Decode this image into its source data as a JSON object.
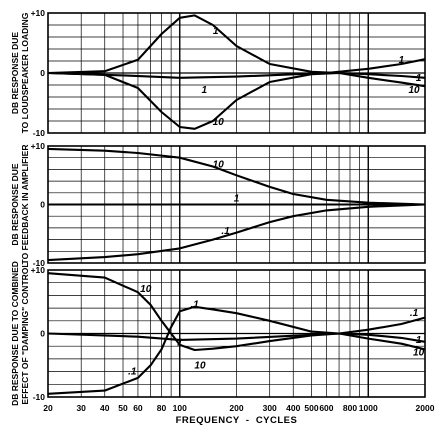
{
  "chart_data": [
    {
      "type": "line",
      "ylabel": [
        "DB RESPONSE DUE",
        "TO LOUDSPEAKER LOADING"
      ],
      "x_scale": "log",
      "xlim": [
        20,
        2000
      ],
      "ylim": [
        -10,
        10
      ],
      "y_ticks": [
        {
          "value": 10,
          "label": "+10"
        },
        {
          "value": 0,
          "label": "0"
        },
        {
          "value": -10,
          "label": "-10"
        }
      ],
      "series": [
        {
          "name": "1",
          "x": [
            20,
            40,
            60,
            80,
            100,
            120,
            150,
            200,
            300,
            500,
            700,
            1000,
            1500,
            2000
          ],
          "y": [
            0,
            0.3,
            2.2,
            6.5,
            9.2,
            9.6,
            8,
            4.5,
            1.5,
            0.2,
            0,
            -0.2,
            -0.5,
            -0.8
          ]
        },
        {
          "name": ".1",
          "x": [
            20,
            50,
            100,
            200,
            500,
            600,
            1000,
            1500,
            2000
          ],
          "y": [
            0,
            -0.4,
            -0.8,
            -0.6,
            -0.1,
            0,
            0.7,
            1.5,
            2.3
          ]
        },
        {
          "name": "10",
          "x": [
            20,
            40,
            60,
            80,
            100,
            120,
            150,
            200,
            300,
            500,
            700,
            1000,
            1500,
            2000
          ],
          "y": [
            0,
            -0.3,
            -2.5,
            -6.5,
            -9,
            -9.3,
            -8,
            -4.5,
            -1.5,
            -0.2,
            0,
            -0.8,
            -1.6,
            -2.2
          ]
        }
      ],
      "curve_labels": [
        {
          "text": "1",
          "x": 155,
          "y": 7
        },
        {
          "text": "1",
          "x": 1500,
          "y": 2.2
        },
        {
          "text": "1",
          "x": 135,
          "y": -2.8
        },
        {
          "text": "1",
          "x": 1850,
          "y": -0.8
        },
        {
          "text": "10",
          "x": 160,
          "y": -8.2
        },
        {
          "text": "10",
          "x": 1750,
          "y": -2.8
        }
      ]
    },
    {
      "type": "line",
      "ylabel": [
        "DB RESPONSE DUE",
        "TO FEEDBACK IN AMPLIFIER"
      ],
      "x_scale": "log",
      "xlim": [
        20,
        2000
      ],
      "ylim": [
        -10,
        10
      ],
      "y_ticks": [
        {
          "value": 10,
          "label": "+10"
        },
        {
          "value": 0,
          "label": "0"
        },
        {
          "value": -10,
          "label": "-10"
        }
      ],
      "series": [
        {
          "name": "10",
          "x": [
            20,
            40,
            60,
            100,
            150,
            200,
            300,
            400,
            600,
            1000,
            2000
          ],
          "y": [
            9.5,
            9.2,
            8.8,
            8,
            6.5,
            5,
            3,
            1.8,
            0.8,
            0.3,
            0
          ]
        },
        {
          "name": "1",
          "x": [
            20,
            2000
          ],
          "y": [
            0,
            0
          ]
        },
        {
          "name": ".1",
          "x": [
            20,
            40,
            60,
            100,
            150,
            200,
            300,
            400,
            600,
            1000,
            2000
          ],
          "y": [
            -9.5,
            -9,
            -8.5,
            -7.5,
            -6,
            -4.8,
            -3,
            -2,
            -1,
            -0.4,
            0
          ]
        }
      ],
      "curve_labels": [
        {
          "text": "10",
          "x": 160,
          "y": 6.8
        },
        {
          "text": "1",
          "x": 200,
          "y": 1
        },
        {
          "text": ".1",
          "x": 175,
          "y": -4.5
        }
      ]
    },
    {
      "type": "line",
      "ylabel": [
        "DB RESPONSE DUE TO COMBINED",
        "EFFECT OF \"DAMPING\" CONTROL"
      ],
      "x_scale": "log",
      "xlim": [
        20,
        2000
      ],
      "ylim": [
        -10,
        10
      ],
      "y_ticks": [
        {
          "value": 10,
          "label": "+10"
        },
        {
          "value": 0,
          "label": "0"
        },
        {
          "value": -10,
          "label": "-10"
        }
      ],
      "series": [
        {
          "name": "10",
          "x": [
            20,
            40,
            60,
            70,
            80,
            90,
            100,
            120,
            150,
            200,
            300,
            500,
            700,
            1000,
            1500,
            2000
          ],
          "y": [
            9.5,
            8.8,
            6.5,
            4.5,
            2,
            0,
            -1.8,
            -2.6,
            -2.4,
            -2,
            -1.2,
            -0.3,
            0,
            -0.8,
            -1.6,
            -2.5
          ]
        },
        {
          "name": "1",
          "x": [
            20,
            60,
            100,
            200,
            500,
            700,
            1000,
            1500,
            2000
          ],
          "y": [
            0,
            -0.5,
            -1,
            -0.8,
            -0.2,
            0,
            -0.2,
            -0.7,
            -1.3
          ]
        },
        {
          "name": ".1",
          "x": [
            20,
            40,
            60,
            70,
            80,
            90,
            100,
            120,
            150,
            200,
            300,
            500,
            700,
            1000,
            1500,
            2000
          ],
          "y": [
            -9.5,
            -9,
            -7,
            -5,
            -2.5,
            1,
            3.5,
            4.2,
            3.8,
            3.2,
            2,
            0.3,
            0,
            0.6,
            1.5,
            2.5
          ]
        }
      ],
      "curve_labels": [
        {
          "text": "10",
          "x": 66,
          "y": 7
        },
        {
          "text": ".1",
          "x": 120,
          "y": 4.6
        },
        {
          "text": "1",
          "x": 100,
          "y": -1.4
        },
        {
          "text": "10",
          "x": 128,
          "y": -5
        },
        {
          "text": ".1",
          "x": 56,
          "y": -6
        },
        {
          "text": ".1",
          "x": 1750,
          "y": 3.2
        },
        {
          "text": "1",
          "x": 1850,
          "y": -1
        },
        {
          "text": "10",
          "x": 1850,
          "y": -3
        }
      ]
    }
  ],
  "x_axis": {
    "ticks": [
      {
        "value": 20,
        "label": "20"
      },
      {
        "value": 30,
        "label": "30"
      },
      {
        "value": 40,
        "label": "40"
      },
      {
        "value": 50,
        "label": "50"
      },
      {
        "value": 60,
        "label": "60"
      },
      {
        "value": 80,
        "label": "80"
      },
      {
        "value": 100,
        "label": "100"
      },
      {
        "value": 200,
        "label": "200"
      },
      {
        "value": 300,
        "label": "300"
      },
      {
        "value": 400,
        "label": "400"
      },
      {
        "value": 500,
        "label": "500"
      },
      {
        "value": 600,
        "label": "600"
      },
      {
        "value": 800,
        "label": "800"
      },
      {
        "value": 1000,
        "label": "1000"
      },
      {
        "value": 2000,
        "label": "2000"
      }
    ],
    "label": "FREQUENCY  -  CYCLES"
  }
}
